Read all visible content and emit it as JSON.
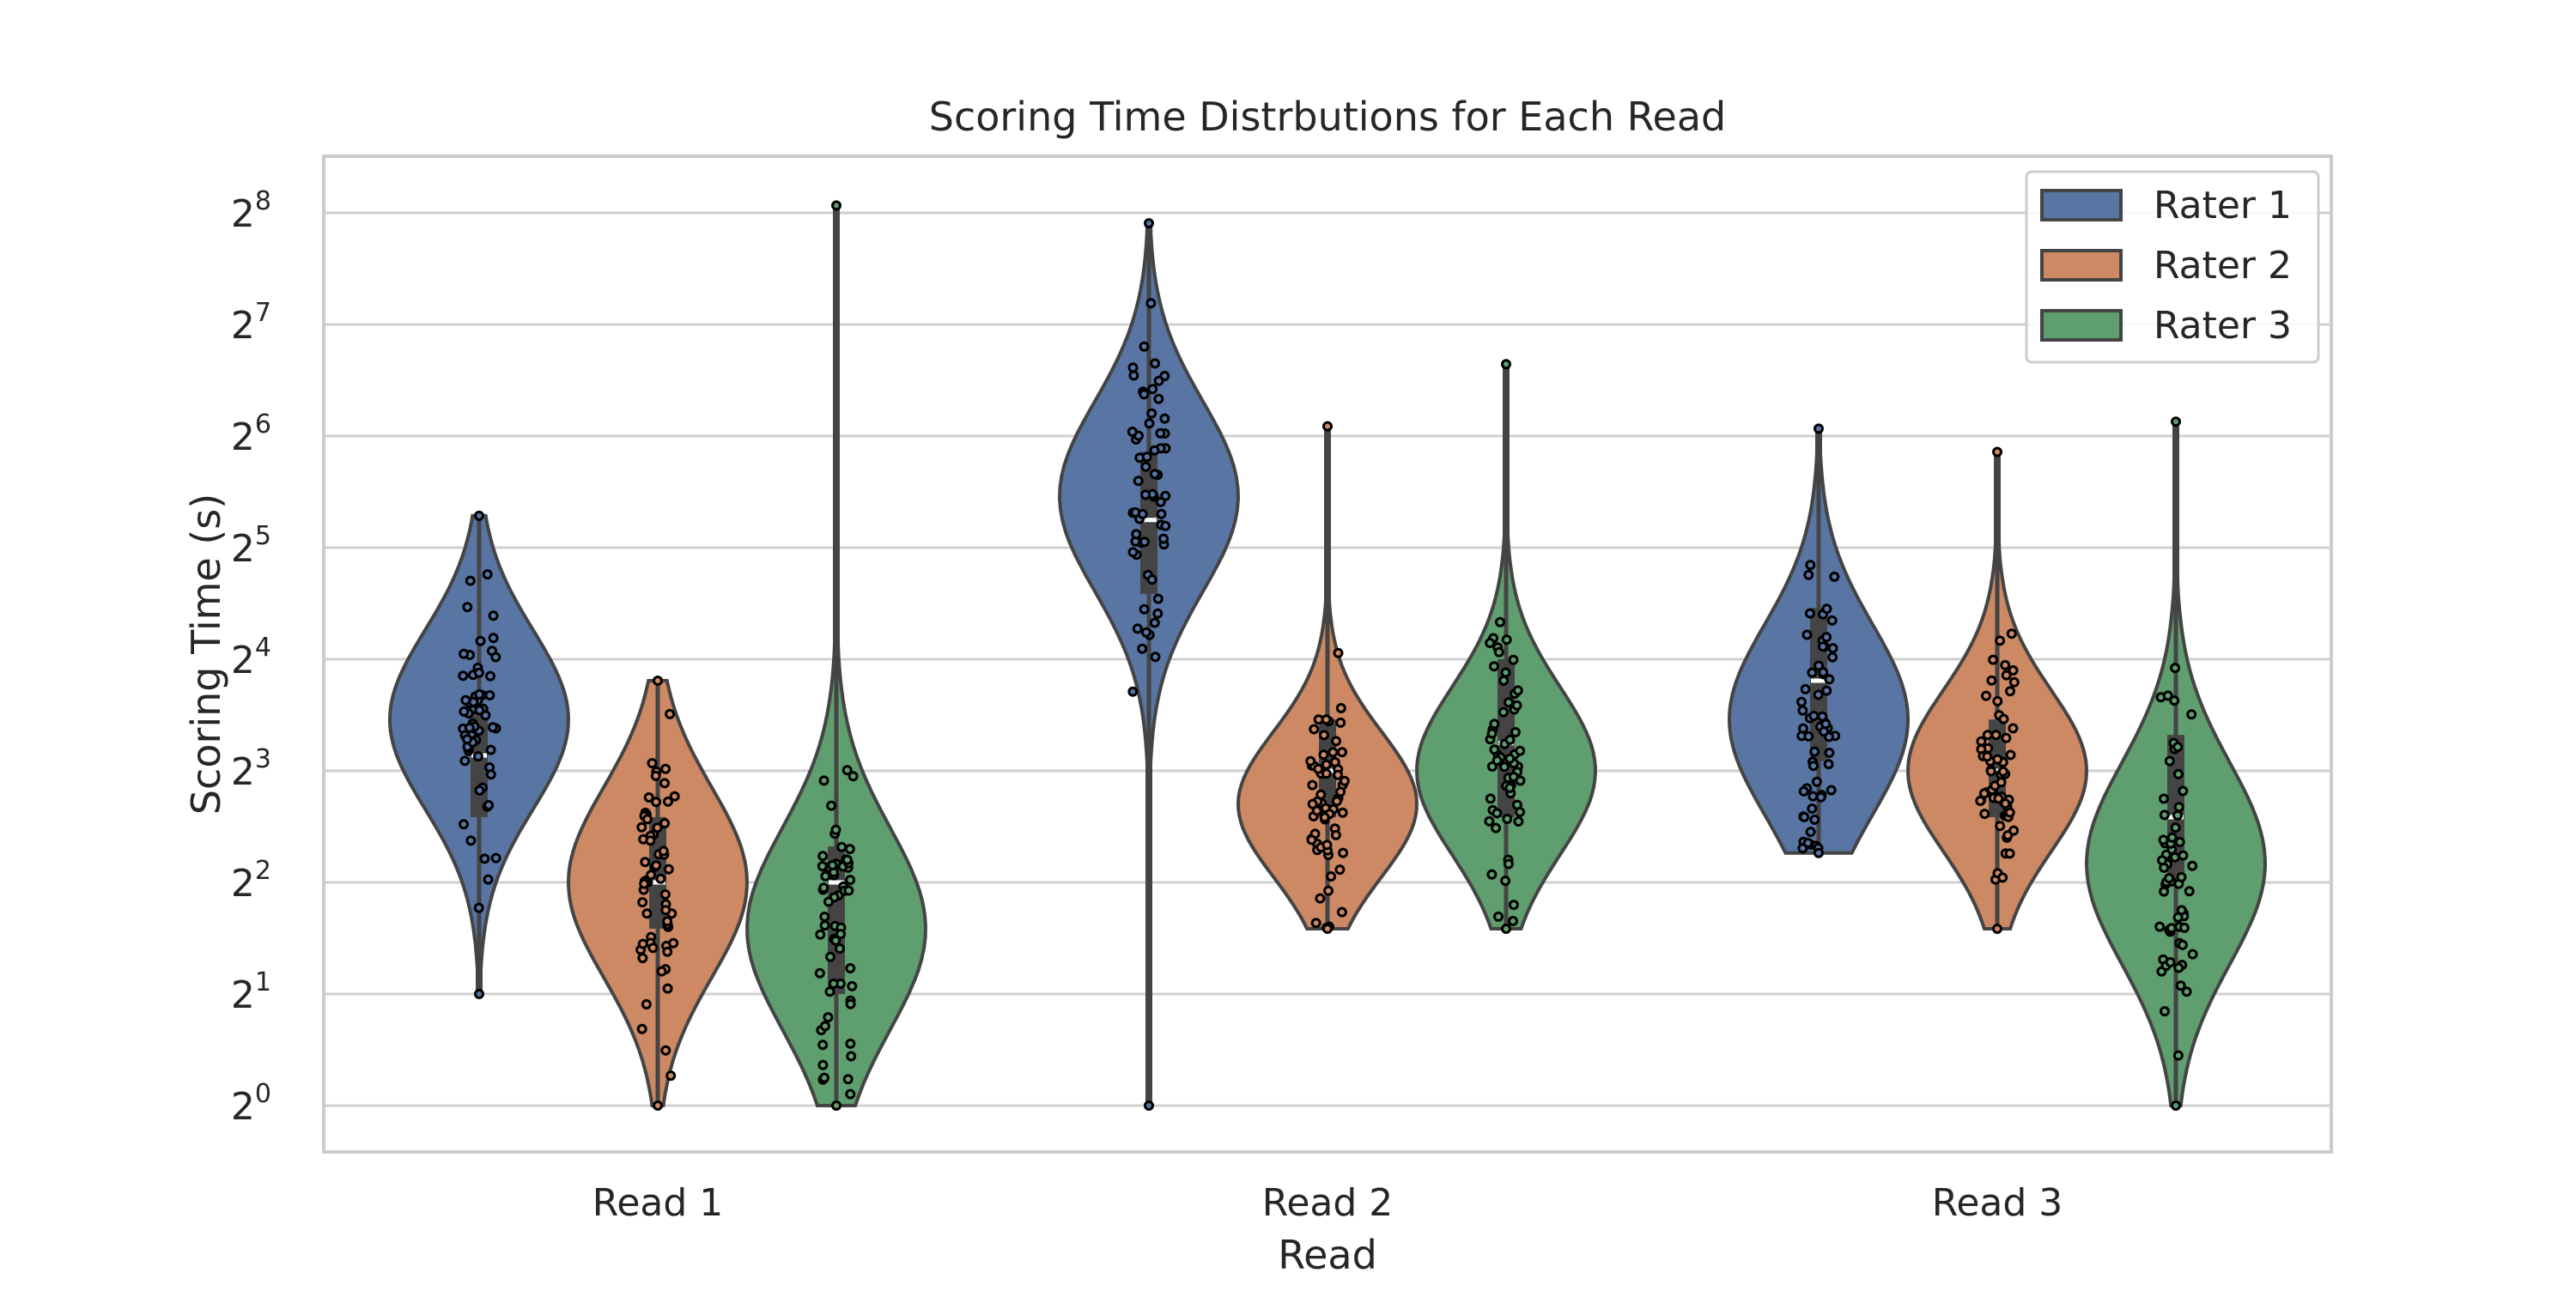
{
  "chart_data": {
    "type": "violin",
    "title": "Scoring Time Distrbutions for Each Read",
    "xlabel": "Read",
    "ylabel": "Scoring Time (s)",
    "y_scale": "log2",
    "ylim": [
      0.8,
      320
    ],
    "y_ticks": [
      1,
      2,
      4,
      8,
      16,
      32,
      64,
      128,
      256
    ],
    "y_tick_labels": [
      {
        "base": "2",
        "exp": "0"
      },
      {
        "base": "2",
        "exp": "1"
      },
      {
        "base": "2",
        "exp": "2"
      },
      {
        "base": "2",
        "exp": "3"
      },
      {
        "base": "2",
        "exp": "4"
      },
      {
        "base": "2",
        "exp": "5"
      },
      {
        "base": "2",
        "exp": "6"
      },
      {
        "base": "2",
        "exp": "7"
      },
      {
        "base": "2",
        "exp": "8"
      }
    ],
    "categories": [
      "Read 1",
      "Read 2",
      "Read 3"
    ],
    "grid": true,
    "legend_position": "top-right",
    "series": [
      {
        "name": "Rater 1",
        "color": "#5875a4",
        "violins": [
          {
            "min": 2,
            "max": 39,
            "q1": 6,
            "median": 8.8,
            "q3": 12,
            "mode": 11,
            "spread": 0.8
          },
          {
            "min": 1,
            "max": 240,
            "q1": 24,
            "median": 38,
            "q3": 58,
            "mode": 44,
            "spread": 0.85
          },
          {
            "min": 4.8,
            "max": 67,
            "q1": 8.5,
            "median": 14,
            "q3": 22,
            "mode": 11,
            "spread": 0.85
          }
        ]
      },
      {
        "name": "Rater 2",
        "color": "#cc8963",
        "violins": [
          {
            "min": 1,
            "max": 14,
            "q1": 3,
            "median": 4,
            "q3": 6,
            "mode": 4,
            "spread": 0.85
          },
          {
            "min": 3,
            "max": 68,
            "q1": 6,
            "median": 8,
            "q3": 11,
            "mode": 6.5,
            "spread": 0.65
          },
          {
            "min": 3,
            "max": 58,
            "q1": 6,
            "median": 8,
            "q3": 11,
            "mode": 8,
            "spread": 0.72
          }
        ]
      },
      {
        "name": "Rater 3",
        "color": "#5f9e6e",
        "violins": [
          {
            "min": 1,
            "max": 268,
            "q1": 2,
            "median": 4,
            "q3": 5,
            "mode": 3,
            "spread": 0.9
          },
          {
            "min": 3,
            "max": 100,
            "q1": 6,
            "median": 9.5,
            "q3": 16,
            "mode": 8,
            "spread": 0.75
          },
          {
            "min": 1,
            "max": 70,
            "q1": 4,
            "median": 6,
            "q3": 10,
            "mode": 4.5,
            "spread": 0.9
          }
        ]
      }
    ]
  }
}
